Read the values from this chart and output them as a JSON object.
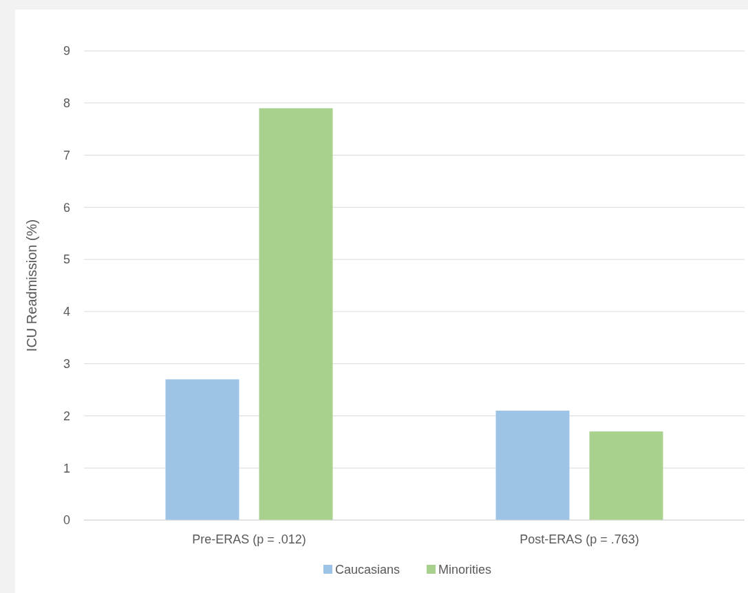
{
  "chart_data": {
    "type": "bar",
    "ylabel": "ICU Readmission (%)",
    "categories": [
      "Pre-ERAS (p = .012)",
      "Post-ERAS (p = .763)"
    ],
    "series": [
      {
        "name": "Caucasians",
        "color": "#9dc3e6",
        "values": [
          2.7,
          2.1
        ]
      },
      {
        "name": "Minorities",
        "color": "#a9d18e",
        "values": [
          7.9,
          1.7
        ]
      }
    ],
    "ylim": [
      0,
      9
    ],
    "yticks": [
      0,
      1,
      2,
      3,
      4,
      5,
      6,
      7,
      8,
      9
    ],
    "grid": "y",
    "legend": "bottom"
  }
}
